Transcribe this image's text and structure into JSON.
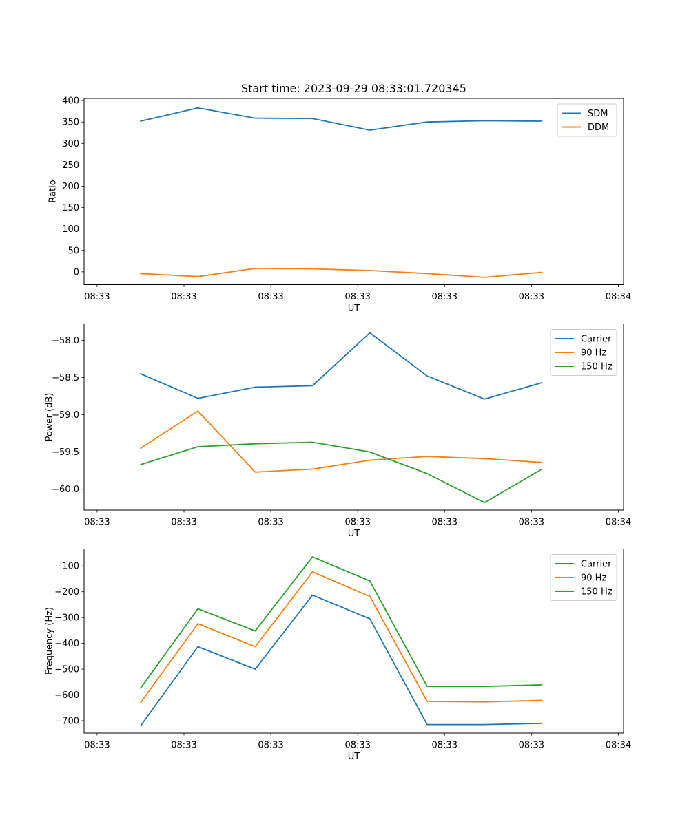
{
  "title": "Start time: 2023-09-29 08:33:01.720345",
  "colors": {
    "blue": "#1f77b4",
    "orange": "#ff7f0e",
    "green": "#2ca02c"
  },
  "chart_data": [
    {
      "id": "ratio",
      "type": "line",
      "title": "Start time: 2023-09-29 08:33:01.720345",
      "xlabel": "UT",
      "ylabel": "Ratio",
      "x_note": "seconds after 08:33:00 UT (estimated from tick spacing)",
      "x": [
        5.0,
        11.6,
        18.2,
        24.8,
        31.4,
        38.0,
        44.6,
        51.2
      ],
      "xlim": [
        -1.5,
        60.6
      ],
      "ylim": [
        -30,
        405
      ],
      "grid": false,
      "legend_position": "upper right",
      "x_ticks": {
        "values": [
          0,
          10,
          20,
          30,
          40,
          50,
          60
        ],
        "labels": [
          "08:33",
          "08:33",
          "08:33",
          "08:33",
          "08:33",
          "08:33",
          "08:34"
        ]
      },
      "y_ticks": {
        "values": [
          0,
          50,
          100,
          150,
          200,
          250,
          300,
          350,
          400
        ],
        "labels": [
          "0",
          "50",
          "100",
          "150",
          "200",
          "250",
          "300",
          "350",
          "400"
        ]
      },
      "series": [
        {
          "name": "SDM",
          "color": "#1f77b4",
          "values": [
            352,
            383,
            359,
            358,
            331,
            350,
            353,
            352
          ]
        },
        {
          "name": "DDM",
          "color": "#ff7f0e",
          "values": [
            -4,
            -11,
            8,
            7,
            3,
            -4,
            -13,
            -1
          ]
        }
      ]
    },
    {
      "id": "power",
      "type": "line",
      "title": "",
      "xlabel": "UT",
      "ylabel": "Power (dB)",
      "x_note": "seconds after 08:33:00 UT (estimated from tick spacing)",
      "x": [
        5.0,
        11.6,
        18.2,
        24.8,
        31.4,
        38.0,
        44.6,
        51.2
      ],
      "xlim": [
        -1.5,
        60.6
      ],
      "ylim": [
        -60.28,
        -57.78
      ],
      "grid": false,
      "legend_position": "upper right",
      "x_ticks": {
        "values": [
          0,
          10,
          20,
          30,
          40,
          50,
          60
        ],
        "labels": [
          "08:33",
          "08:33",
          "08:33",
          "08:33",
          "08:33",
          "08:33",
          "08:34"
        ]
      },
      "y_ticks": {
        "values": [
          -58.0,
          -58.5,
          -59.0,
          -59.5,
          -60.0
        ],
        "labels": [
          "−58.0",
          "−58.5",
          "−59.0",
          "−59.5",
          "−60.0"
        ]
      },
      "series": [
        {
          "name": "Carrier",
          "color": "#1f77b4",
          "values": [
            -58.45,
            -58.78,
            -58.63,
            -58.61,
            -57.9,
            -58.48,
            -58.79,
            -58.57
          ]
        },
        {
          "name": "90 Hz",
          "color": "#ff7f0e",
          "values": [
            -59.45,
            -58.95,
            -59.77,
            -59.73,
            -59.61,
            -59.56,
            -59.59,
            -59.64
          ]
        },
        {
          "name": "150 Hz",
          "color": "#2ca02c",
          "values": [
            -59.67,
            -59.43,
            -59.39,
            -59.37,
            -59.5,
            -59.79,
            -60.18,
            -59.73
          ]
        }
      ]
    },
    {
      "id": "frequency",
      "type": "line",
      "title": "",
      "xlabel": "UT",
      "ylabel": "Frequency (Hz)",
      "x_note": "seconds after 08:33:00 UT (estimated from tick spacing)",
      "x": [
        5.0,
        11.6,
        18.2,
        24.8,
        31.4,
        38.0,
        44.6,
        51.2
      ],
      "xlim": [
        -1.5,
        60.6
      ],
      "ylim": [
        -748,
        -34
      ],
      "grid": false,
      "legend_position": "upper right",
      "x_ticks": {
        "values": [
          0,
          10,
          20,
          30,
          40,
          50,
          60
        ],
        "labels": [
          "08:33",
          "08:33",
          "08:33",
          "08:33",
          "08:33",
          "08:33",
          "08:34"
        ]
      },
      "y_ticks": {
        "values": [
          -100,
          -200,
          -300,
          -400,
          -500,
          -600,
          -700
        ],
        "labels": [
          "−100",
          "−200",
          "−300",
          "−400",
          "−500",
          "−600",
          "−700"
        ]
      },
      "series": [
        {
          "name": "Carrier",
          "color": "#1f77b4",
          "values": [
            -720,
            -413,
            -500,
            -213,
            -305,
            -715,
            -715,
            -710
          ]
        },
        {
          "name": "90 Hz",
          "color": "#ff7f0e",
          "values": [
            -630,
            -324,
            -413,
            -123,
            -218,
            -625,
            -627,
            -621
          ]
        },
        {
          "name": "150 Hz",
          "color": "#2ca02c",
          "values": [
            -574,
            -266,
            -352,
            -65,
            -158,
            -567,
            -567,
            -561
          ]
        }
      ]
    }
  ]
}
